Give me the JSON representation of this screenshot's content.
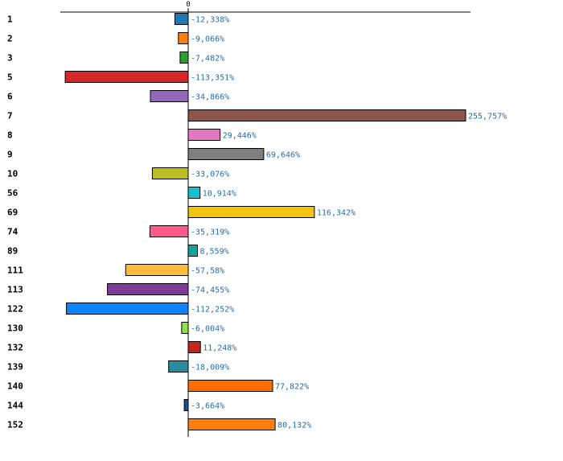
{
  "chart_data": {
    "type": "bar",
    "orientation": "horizontal",
    "title": "",
    "xlabel": "",
    "ylabel": "",
    "grid": false,
    "xlim": [
      -115,
      256
    ],
    "zero_tick_label": "0",
    "categories": [
      "1",
      "2",
      "3",
      "5",
      "6",
      "7",
      "8",
      "9",
      "10",
      "56",
      "69",
      "74",
      "89",
      "111",
      "113",
      "122",
      "130",
      "132",
      "139",
      "140",
      "144",
      "152"
    ],
    "values": [
      -12.338,
      -9.066,
      -7.482,
      -113.351,
      -34.866,
      255.757,
      29.446,
      69.646,
      -33.076,
      10.914,
      116.342,
      -35.319,
      8.559,
      -57.58,
      -74.455,
      -112.252,
      -6.004,
      11.248,
      -18.009,
      77.822,
      -3.664,
      80.132
    ],
    "value_labels": [
      "-12,338%",
      "-9,066%",
      "-7,482%",
      "-113,351%",
      "-34,866%",
      "255,757%",
      "29,446%",
      "69,646%",
      "-33,076%",
      "10,914%",
      "116,342%",
      "-35,319%",
      "8,559%",
      "-57,58%",
      "-74,455%",
      "-112,252%",
      "-6,004%",
      "11,248%",
      "-18,009%",
      "77,822%",
      "-3,664%",
      "80,132%"
    ],
    "colors": [
      "#1f77b4",
      "#ff7f0e",
      "#2ca02c",
      "#d62728",
      "#9467bd",
      "#8c564b",
      "#e377c2",
      "#7f7f7f",
      "#bcbd22",
      "#17becf",
      "#f1c40f",
      "#ff5a8a",
      "#12a39a",
      "#fdbb3c",
      "#7d3c98",
      "#0a84ff",
      "#8ee04e",
      "#c0281b",
      "#2e8a9e",
      "#ff6d00",
      "#1f4e8c",
      "#ff7f0e"
    ]
  }
}
